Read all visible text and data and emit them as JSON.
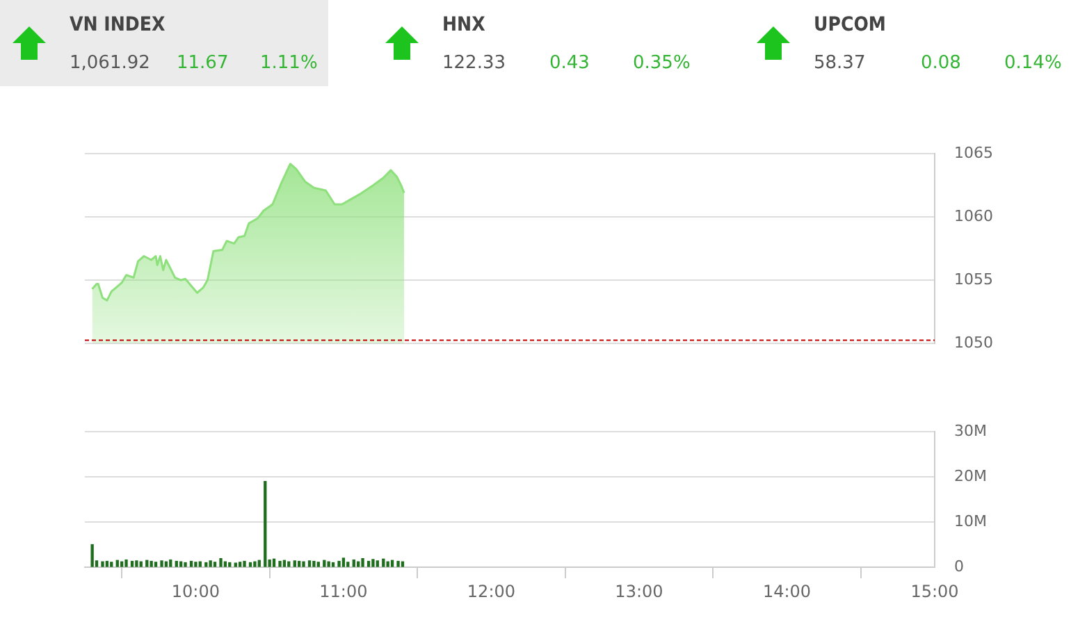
{
  "chart_data": [
    {
      "type": "other",
      "title": "VN INDEX",
      "annotations": [
        "1,061.92",
        "11.67",
        "1.11%"
      ]
    },
    {
      "type": "other",
      "title": "HNX",
      "annotations": [
        "122.33",
        "0.43",
        "0.35%"
      ]
    },
    {
      "type": "other",
      "title": "UPCOM",
      "annotations": [
        "58.37",
        "0.08",
        "0.14%"
      ]
    },
    {
      "type": "area",
      "x": [
        9.3,
        9.33,
        9.34,
        9.37,
        9.4,
        9.43,
        9.48,
        9.5,
        9.53,
        9.58,
        9.61,
        9.65,
        9.7,
        9.73,
        9.74,
        9.76,
        9.78,
        9.8,
        9.86,
        9.9,
        9.93,
        10.01,
        10.05,
        10.08,
        10.12,
        10.18,
        10.21,
        10.26,
        10.29,
        10.33,
        10.36,
        10.42,
        10.46,
        10.52,
        10.58,
        10.64,
        10.68,
        10.74,
        10.8,
        10.88,
        10.94,
        10.99,
        11.05,
        11.11,
        11.2,
        11.27,
        11.32,
        11.36,
        11.39,
        11.41
      ],
      "series": [
        {
          "color": "#8ee07c",
          "values": [
            1054.3,
            1054.7,
            1054.7,
            1053.6,
            1053.4,
            1054.1,
            1054.6,
            1054.8,
            1055.4,
            1055.2,
            1056.5,
            1056.9,
            1056.6,
            1056.9,
            1056.2,
            1056.9,
            1055.8,
            1056.6,
            1055.2,
            1055.0,
            1055.1,
            1054.0,
            1054.4,
            1055.0,
            1057.3,
            1057.4,
            1058.1,
            1057.9,
            1058.4,
            1058.5,
            1059.5,
            1059.9,
            1060.5,
            1061.0,
            1062.7,
            1064.2,
            1063.8,
            1062.8,
            1062.3,
            1062.1,
            1061.0,
            1061.0,
            1061.4,
            1061.8,
            1062.5,
            1063.1,
            1063.7,
            1063.2,
            1062.5,
            1061.9
          ]
        }
      ],
      "xlim": [
        9.25,
        15
      ],
      "ylim": [
        1050,
        1065
      ],
      "yticks": [
        1050,
        1055,
        1060,
        1065
      ],
      "tick_labels": "y",
      "grid": "y",
      "legend": false,
      "ref_lines": [
        {
          "axis": "y",
          "value": 1050.25,
          "color": "#c00000",
          "line_style": "dashed"
        }
      ]
    },
    {
      "type": "bar",
      "x": [
        9.3,
        9.33,
        9.37,
        9.4,
        9.43,
        9.47,
        9.5,
        9.53,
        9.57,
        9.6,
        9.63,
        9.67,
        9.7,
        9.73,
        9.77,
        9.8,
        9.83,
        9.87,
        9.9,
        9.93,
        9.97,
        10.0,
        10.03,
        10.07,
        10.1,
        10.13,
        10.17,
        10.2,
        10.23,
        10.27,
        10.3,
        10.33,
        10.37,
        10.4,
        10.43,
        10.47,
        10.5,
        10.53,
        10.57,
        10.6,
        10.63,
        10.67,
        10.7,
        10.73,
        10.77,
        10.8,
        10.83,
        10.87,
        10.9,
        10.93,
        10.97,
        11.0,
        11.03,
        11.07,
        11.1,
        11.13,
        11.17,
        11.2,
        11.23,
        11.27,
        11.3,
        11.33,
        11.37,
        11.4
      ],
      "series": [
        {
          "color": "#1e6e1e",
          "values": [
            5.0,
            1.4,
            1.2,
            1.3,
            1.1,
            1.5,
            1.2,
            1.6,
            1.3,
            1.4,
            1.2,
            1.5,
            1.3,
            1.1,
            1.4,
            1.2,
            1.6,
            1.3,
            1.2,
            1.0,
            1.3,
            1.1,
            1.2,
            1.0,
            1.4,
            1.1,
            1.9,
            1.2,
            1.0,
            0.9,
            1.1,
            1.3,
            1.0,
            1.2,
            1.5,
            19.0,
            1.6,
            1.8,
            1.3,
            1.5,
            1.2,
            1.4,
            1.3,
            1.2,
            1.4,
            1.3,
            1.1,
            1.5,
            1.2,
            1.0,
            1.3,
            2.0,
            1.1,
            1.6,
            1.2,
            1.9,
            1.3,
            1.7,
            1.4,
            1.8,
            1.2,
            1.5,
            1.3,
            1.2
          ]
        }
      ],
      "xlim": [
        9.25,
        15
      ],
      "xticks": [
        {
          "value": 10,
          "label": "10:00"
        },
        {
          "value": 11,
          "label": "11:00"
        },
        {
          "value": 12,
          "label": "12:00"
        },
        {
          "value": 13,
          "label": "13:00"
        },
        {
          "value": 14,
          "label": "14:00"
        },
        {
          "value": 15,
          "label": "15:00"
        }
      ],
      "ylim": [
        0,
        30
      ],
      "yticks": [
        0,
        {
          "value": 10,
          "label": "10M"
        },
        {
          "value": 20,
          "label": "20M"
        },
        {
          "value": 30,
          "label": "30M"
        }
      ],
      "grid": "y",
      "legend": false
    }
  ]
}
